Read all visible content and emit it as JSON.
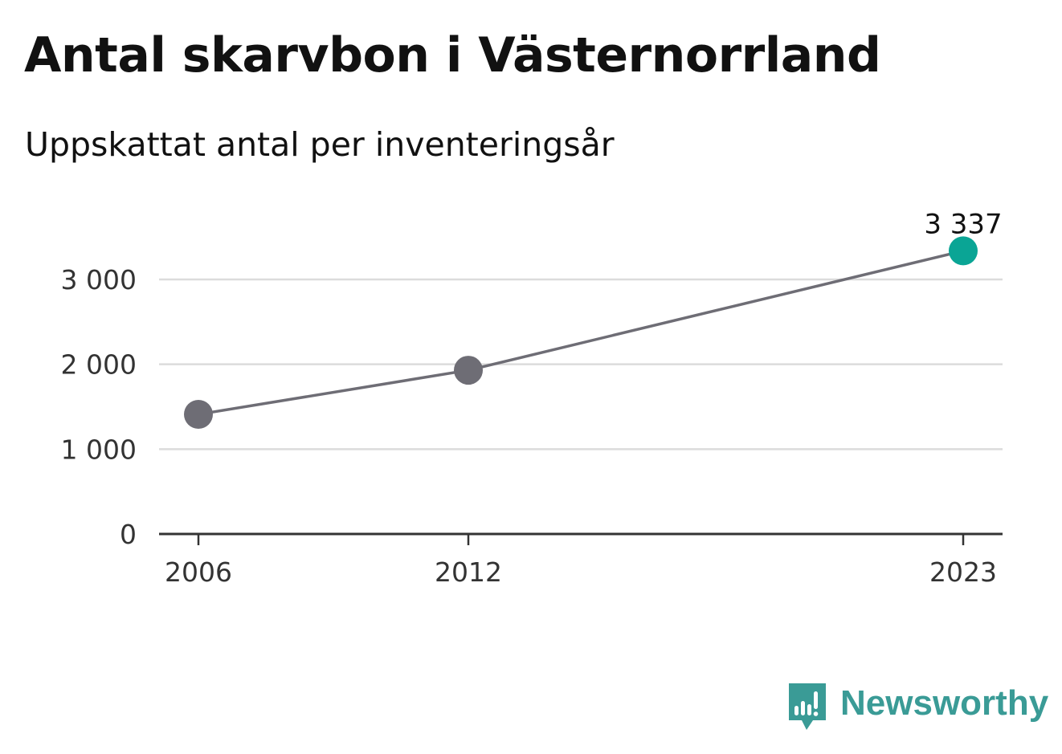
{
  "chart_data": {
    "type": "line",
    "title": "Antal skarvbon i Västernorrland",
    "subtitle": "Uppskattat antal per inventeringsår",
    "x": [
      2006,
      2012,
      2023
    ],
    "x_tick_labels": [
      "2006",
      "2012",
      "2023"
    ],
    "series": [
      {
        "values": [
          1410,
          1930,
          3337
        ],
        "color": "#6e6d75"
      }
    ],
    "highlight": {
      "index": 2,
      "label": "3 337",
      "color": "#0aa595"
    },
    "ylim": [
      0,
      3600
    ],
    "y_ticks": [
      0,
      1000,
      2000,
      3000
    ],
    "y_tick_labels": [
      "0",
      "1 000",
      "2 000",
      "3 000"
    ],
    "xlabel": "",
    "ylabel": "",
    "grid": true,
    "legend": "none"
  },
  "branding": {
    "name": "Newsworthy",
    "icon": "bar-chart-speech-bubble-icon",
    "color": "#3a9b96"
  }
}
